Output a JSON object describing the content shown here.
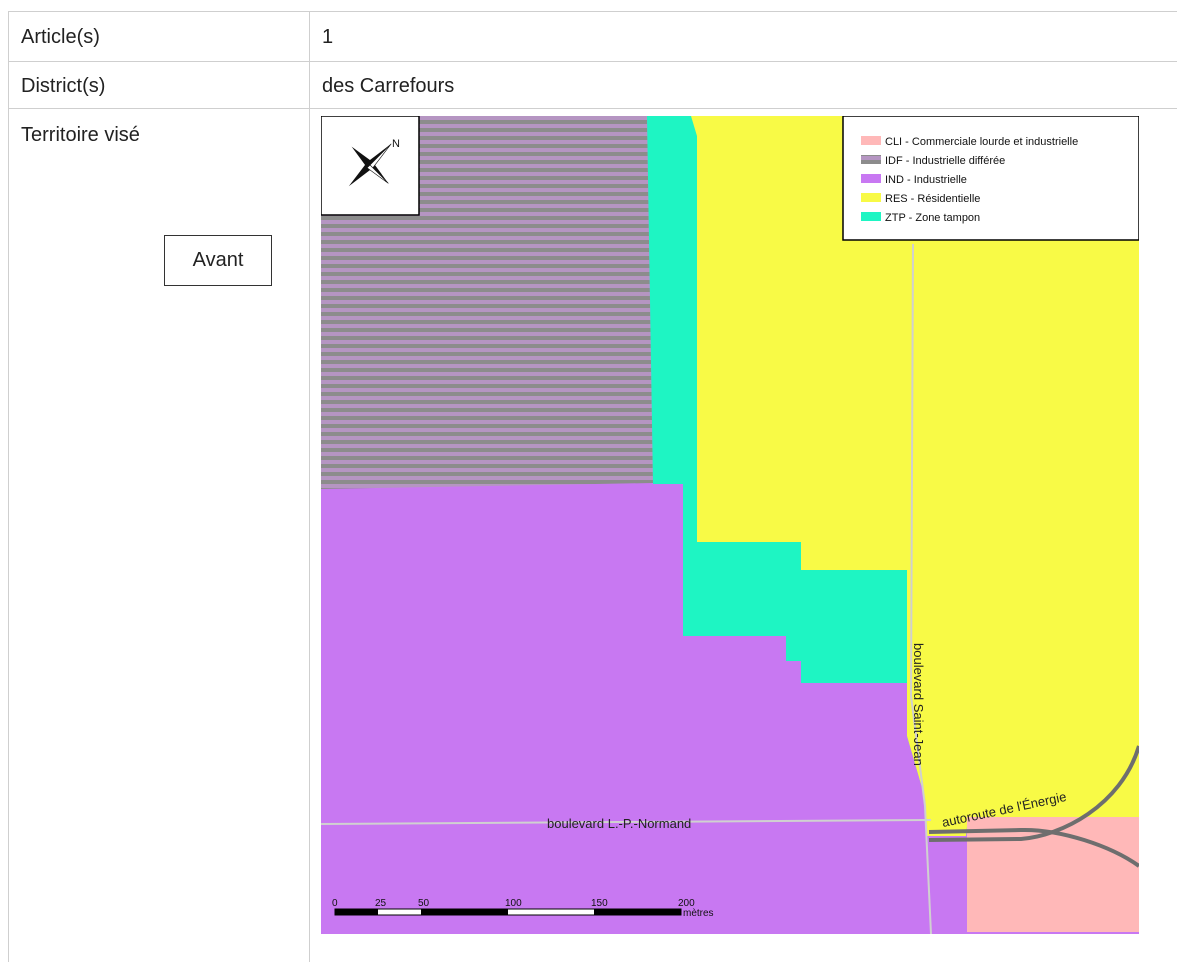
{
  "table": {
    "rows": [
      {
        "label": "Article(s)",
        "value": "1"
      },
      {
        "label": "District(s)",
        "value": "des Carrefours"
      },
      {
        "label": "Territoire visé",
        "value": ""
      }
    ],
    "state_label": "Avant"
  },
  "map": {
    "north_label": "N",
    "legend": [
      {
        "code_label": "CLI - Commerciale lourde et industrielle",
        "color": "#FFB8B8"
      },
      {
        "code_label": "IDF - Industrielle différée",
        "color": "#A88FA8"
      },
      {
        "code_label": "IND - Industrielle",
        "color": "#C878F2"
      },
      {
        "code_label": "RES - Résidentielle",
        "color": "#F8FA46"
      },
      {
        "code_label": "ZTP - Zone tampon",
        "color": "#1EF5C3"
      }
    ],
    "streets": {
      "saint_jean": "boulevard Saint-Jean",
      "normand": "boulevard L.-P.-Normand",
      "autoroute": "autoroute de l'Énergie"
    },
    "scale": {
      "ticks": [
        "0",
        "25",
        "50",
        "100",
        "150",
        "200"
      ],
      "unit": "mètres"
    }
  }
}
